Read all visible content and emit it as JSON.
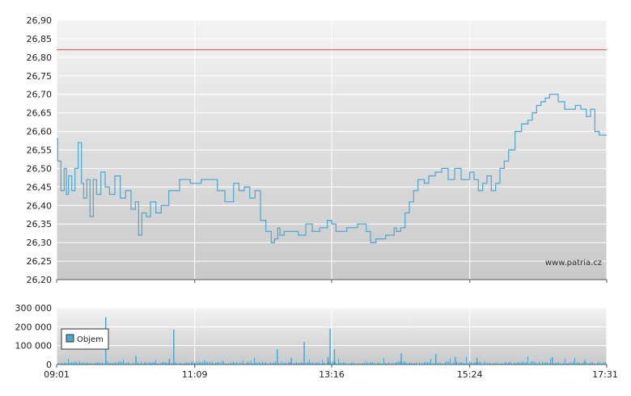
{
  "watermark": "www.patria.cz",
  "colors": {
    "price_line": "#4aa7cf",
    "reference_line": "#e05050",
    "volume_bar": "#4aa7cf",
    "grid": "#ffffff",
    "plot_top": "#f3f3f3",
    "plot_bottom": "#c9c9c9"
  },
  "chart_data": [
    {
      "type": "line",
      "title": "",
      "xlabel": "",
      "ylabel": "",
      "x_tick_labels": [
        "09:01",
        "11:09",
        "13:16",
        "15:24",
        "17:31"
      ],
      "y_tick_labels": [
        "26,20",
        "26,25",
        "26,30",
        "26,35",
        "26,40",
        "26,45",
        "26,50",
        "26,55",
        "26,60",
        "26,65",
        "26,70",
        "26,75",
        "26,80",
        "26,85",
        "26,90"
      ],
      "ylim": [
        26.2,
        26.9
      ],
      "xlim": [
        "09:01",
        "17:31"
      ],
      "grid": true,
      "reference_line": 26.82,
      "series": [
        {
          "x": [
            "09:01",
            "09:02",
            "09:05",
            "09:08",
            "09:10",
            "09:12",
            "09:15",
            "09:18",
            "09:21",
            "09:24",
            "09:26",
            "09:29",
            "09:32",
            "09:35",
            "09:38",
            "09:42",
            "09:46",
            "09:50",
            "09:55",
            "10:00",
            "10:05",
            "10:10",
            "10:14",
            "10:17",
            "10:20",
            "10:24",
            "10:28",
            "10:33",
            "10:38",
            "10:45",
            "10:55",
            "11:05",
            "11:15",
            "11:25",
            "11:30",
            "11:37",
            "11:45",
            "11:50",
            "11:55",
            "12:00",
            "12:05",
            "12:10",
            "12:15",
            "12:20",
            "12:23",
            "12:26",
            "12:28",
            "12:32",
            "12:38",
            "12:45",
            "12:52",
            "12:58",
            "13:05",
            "13:12",
            "13:16",
            "13:20",
            "13:30",
            "13:40",
            "13:48",
            "13:52",
            "13:57",
            "14:02",
            "14:06",
            "14:10",
            "14:14",
            "14:16",
            "14:20",
            "14:24",
            "14:28",
            "14:32",
            "14:36",
            "14:42",
            "14:46",
            "14:52",
            "14:58",
            "15:04",
            "15:10",
            "15:16",
            "15:20",
            "15:24",
            "15:28",
            "15:32",
            "15:36",
            "15:40",
            "15:44",
            "15:48",
            "15:52",
            "15:56",
            "16:00",
            "16:06",
            "16:12",
            "16:18",
            "16:22",
            "16:26",
            "16:30",
            "16:34",
            "16:38",
            "16:42",
            "16:46",
            "16:52",
            "16:58",
            "17:02",
            "17:07",
            "17:12",
            "17:16",
            "17:20",
            "17:24",
            "17:31"
          ],
          "y": [
            26.58,
            26.52,
            26.44,
            26.5,
            26.43,
            26.48,
            26.44,
            26.5,
            26.57,
            26.46,
            26.42,
            26.47,
            26.37,
            26.47,
            26.43,
            26.49,
            26.45,
            26.43,
            26.48,
            26.42,
            26.44,
            26.39,
            26.41,
            26.32,
            26.38,
            26.37,
            26.41,
            26.38,
            26.4,
            26.44,
            26.47,
            26.46,
            26.47,
            26.47,
            26.44,
            26.41,
            26.46,
            26.44,
            26.45,
            26.42,
            26.44,
            26.36,
            26.33,
            26.3,
            26.31,
            26.34,
            26.32,
            26.33,
            26.33,
            26.32,
            26.35,
            26.33,
            26.34,
            26.36,
            26.35,
            26.33,
            26.34,
            26.35,
            26.33,
            26.3,
            26.31,
            26.31,
            26.32,
            26.32,
            26.34,
            26.33,
            26.34,
            26.38,
            26.41,
            26.44,
            26.47,
            26.46,
            26.48,
            26.49,
            26.5,
            26.47,
            26.5,
            26.47,
            26.47,
            26.49,
            26.47,
            26.44,
            26.46,
            26.48,
            26.44,
            26.46,
            26.5,
            26.52,
            26.55,
            26.6,
            26.62,
            26.63,
            26.65,
            26.67,
            26.68,
            26.69,
            26.7,
            26.7,
            26.68,
            26.66,
            26.66,
            26.67,
            26.66,
            26.64,
            26.66,
            26.6,
            26.59,
            26.59
          ]
        }
      ]
    },
    {
      "type": "bar",
      "title": "",
      "xlabel": "",
      "ylabel": "",
      "x_tick_labels": [
        "09:01",
        "11:09",
        "13:16",
        "15:24",
        "17:31"
      ],
      "y_tick_labels": [
        "0",
        "100 000",
        "200 000",
        "300 000"
      ],
      "ylim": [
        0,
        300000
      ],
      "grid": true,
      "legend": {
        "position": "left",
        "entries": [
          "Objem"
        ]
      },
      "series": [
        {
          "name": "Objem",
          "spikes": [
            {
              "x": "09:46",
              "value": 250000
            },
            {
              "x": "10:14",
              "value": 45000
            },
            {
              "x": "10:45",
              "value": 30000
            },
            {
              "x": "10:49",
              "value": 185000
            },
            {
              "x": "12:25",
              "value": 80000
            },
            {
              "x": "12:38",
              "value": 35000
            },
            {
              "x": "12:50",
              "value": 120000
            },
            {
              "x": "13:12",
              "value": 40000
            },
            {
              "x": "13:14",
              "value": 190000
            },
            {
              "x": "13:18",
              "value": 80000
            },
            {
              "x": "14:20",
              "value": 60000
            },
            {
              "x": "14:52",
              "value": 55000
            },
            {
              "x": "15:10",
              "value": 40000
            },
            {
              "x": "15:30",
              "value": 35000
            },
            {
              "x": "16:40",
              "value": 40000
            },
            {
              "x": "17:10",
              "value": 25000
            }
          ],
          "typical_value": 10000
        }
      ]
    }
  ]
}
